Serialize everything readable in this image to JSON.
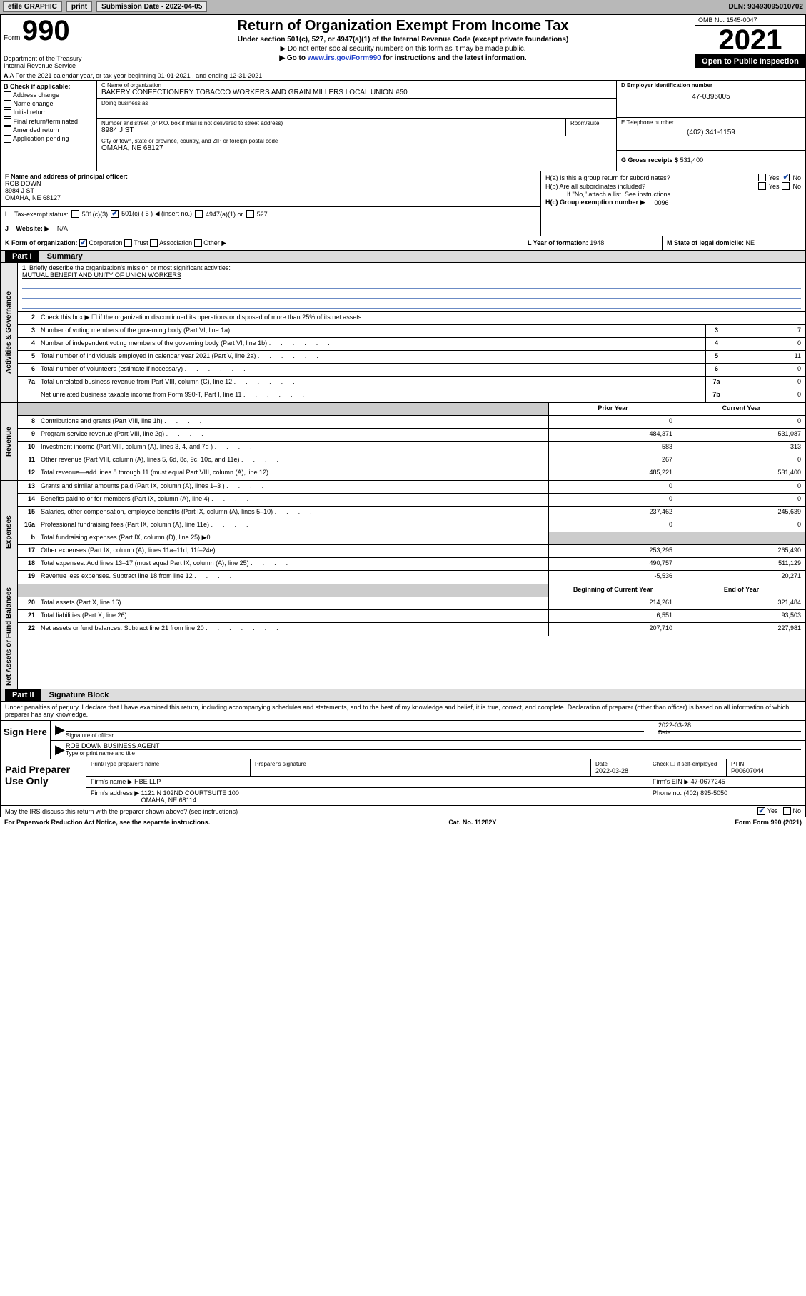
{
  "top_bar": {
    "efile": "efile GRAPHIC",
    "print": "print",
    "sub_label": "Submission Date - 2022-04-05",
    "dln": "DLN: 93493095010702"
  },
  "header": {
    "form_label": "Form",
    "form_num": "990",
    "dept": "Department of the Treasury\nInternal Revenue Service",
    "title": "Return of Organization Exempt From Income Tax",
    "sub": "Under section 501(c), 527, or 4947(a)(1) of the Internal Revenue Code (except private foundations)",
    "note1": "▶ Do not enter social security numbers on this form as it may be made public.",
    "note2_pre": "▶ Go to ",
    "note2_link": "www.irs.gov/Form990",
    "note2_post": " for instructions and the latest information.",
    "omb": "OMB No. 1545-0047",
    "year": "2021",
    "open": "Open to Public Inspection"
  },
  "row_a": "A For the 2021 calendar year, or tax year beginning 01-01-2021    , and ending 12-31-2021",
  "col_b": {
    "label": "B Check if applicable:",
    "items": [
      "Address change",
      "Name change",
      "Initial return",
      "Final return/terminated",
      "Amended return",
      "Application pending"
    ]
  },
  "col_c": {
    "name_label": "C Name of organization",
    "name": "BAKERY CONFECTIONERY TOBACCO WORKERS AND GRAIN MILLERS LOCAL UNION #50",
    "dba_label": "Doing business as",
    "addr_label": "Number and street (or P.O. box if mail is not delivered to street address)",
    "addr": "8984 J ST",
    "room_label": "Room/suite",
    "city_label": "City or town, state or province, country, and ZIP or foreign postal code",
    "city": "OMAHA, NE  68127"
  },
  "col_d": {
    "ein_label": "D Employer identification number",
    "ein": "47-0396005",
    "phone_label": "E Telephone number",
    "phone": "(402) 341-1159",
    "gross_label": "G Gross receipts $",
    "gross": "531,400"
  },
  "fgh": {
    "f_label": "F Name and address of principal officer:",
    "f_name": "ROB DOWN",
    "f_addr": "8984 J ST\nOMAHA, NE  68127",
    "i_label": "Tax-exempt status:",
    "i_501c3": "501(c)(3)",
    "i_501c": "501(c) ( 5 ) ◀ (insert no.)",
    "i_4947": "4947(a)(1) or",
    "i_527": "527",
    "j_label": "Website: ▶",
    "j_val": "N/A",
    "ha_label": "H(a)  Is this a group return for subordinates?",
    "hb_label": "H(b)  Are all subordinates included?",
    "hb_note": "If \"No,\" attach a list. See instructions.",
    "hc_label": "H(c)  Group exemption number ▶",
    "hc_val": "0096"
  },
  "row_k": {
    "k_label": "K Form of organization:",
    "k_corp": "Corporation",
    "k_trust": "Trust",
    "k_assoc": "Association",
    "k_other": "Other ▶",
    "l_label": "L Year of formation:",
    "l_val": "1948",
    "m_label": "M State of legal domicile:",
    "m_val": "NE"
  },
  "part1": {
    "header": "Part I",
    "title": "Summary",
    "q1_label": "Briefly describe the organization's mission or most significant activities:",
    "q1_val": "MUTUAL BENEFIT AND UNITY OF UNION WORKERS",
    "q2": "Check this box ▶ ☐  if the organization discontinued its operations or disposed of more than 25% of its net assets.",
    "rows_gov": [
      {
        "n": "3",
        "d": "Number of voting members of the governing body (Part VI, line 1a)",
        "box": "3",
        "v": "7"
      },
      {
        "n": "4",
        "d": "Number of independent voting members of the governing body (Part VI, line 1b)",
        "box": "4",
        "v": "0"
      },
      {
        "n": "5",
        "d": "Total number of individuals employed in calendar year 2021 (Part V, line 2a)",
        "box": "5",
        "v": "11"
      },
      {
        "n": "6",
        "d": "Total number of volunteers (estimate if necessary)",
        "box": "6",
        "v": "0"
      },
      {
        "n": "7a",
        "d": "Total unrelated business revenue from Part VIII, column (C), line 12",
        "box": "7a",
        "v": "0"
      },
      {
        "n": "",
        "d": "Net unrelated business taxable income from Form 990-T, Part I, line 11",
        "box": "7b",
        "v": "0"
      }
    ],
    "col_prior": "Prior Year",
    "col_current": "Current Year",
    "col_boy": "Beginning of Current Year",
    "col_eoy": "End of Year",
    "rows_rev": [
      {
        "n": "8",
        "d": "Contributions and grants (Part VIII, line 1h)",
        "p": "0",
        "c": "0"
      },
      {
        "n": "9",
        "d": "Program service revenue (Part VIII, line 2g)",
        "p": "484,371",
        "c": "531,087"
      },
      {
        "n": "10",
        "d": "Investment income (Part VIII, column (A), lines 3, 4, and 7d )",
        "p": "583",
        "c": "313"
      },
      {
        "n": "11",
        "d": "Other revenue (Part VIII, column (A), lines 5, 6d, 8c, 9c, 10c, and 11e)",
        "p": "267",
        "c": "0"
      },
      {
        "n": "12",
        "d": "Total revenue—add lines 8 through 11 (must equal Part VIII, column (A), line 12)",
        "p": "485,221",
        "c": "531,400"
      }
    ],
    "rows_exp": [
      {
        "n": "13",
        "d": "Grants and similar amounts paid (Part IX, column (A), lines 1–3 )",
        "p": "0",
        "c": "0"
      },
      {
        "n": "14",
        "d": "Benefits paid to or for members (Part IX, column (A), line 4)",
        "p": "0",
        "c": "0"
      },
      {
        "n": "15",
        "d": "Salaries, other compensation, employee benefits (Part IX, column (A), lines 5–10)",
        "p": "237,462",
        "c": "245,639"
      },
      {
        "n": "16a",
        "d": "Professional fundraising fees (Part IX, column (A), line 11e)",
        "p": "0",
        "c": "0"
      },
      {
        "n": "b",
        "d": "Total fundraising expenses (Part IX, column (D), line 25) ▶0",
        "p": "",
        "c": "",
        "shaded": true
      },
      {
        "n": "17",
        "d": "Other expenses (Part IX, column (A), lines 11a–11d, 11f–24e)",
        "p": "253,295",
        "c": "265,490"
      },
      {
        "n": "18",
        "d": "Total expenses. Add lines 13–17 (must equal Part IX, column (A), line 25)",
        "p": "490,757",
        "c": "511,129"
      },
      {
        "n": "19",
        "d": "Revenue less expenses. Subtract line 18 from line 12",
        "p": "-5,536",
        "c": "20,271"
      }
    ],
    "rows_net": [
      {
        "n": "20",
        "d": "Total assets (Part X, line 16)",
        "p": "214,261",
        "c": "321,484"
      },
      {
        "n": "21",
        "d": "Total liabilities (Part X, line 26)",
        "p": "6,551",
        "c": "93,503"
      },
      {
        "n": "22",
        "d": "Net assets or fund balances. Subtract line 21 from line 20",
        "p": "207,710",
        "c": "227,981"
      }
    ],
    "side_gov": "Activities & Governance",
    "side_rev": "Revenue",
    "side_exp": "Expenses",
    "side_net": "Net Assets or Fund Balances"
  },
  "part2": {
    "header": "Part II",
    "title": "Signature Block",
    "perjury": "Under penalties of perjury, I declare that I have examined this return, including accompanying schedules and statements, and to the best of my knowledge and belief, it is true, correct, and complete. Declaration of preparer (other than officer) is based on all information of which preparer has any knowledge.",
    "sign_here": "Sign Here",
    "sig_officer": "Signature of officer",
    "sig_date": "2022-03-28",
    "sig_name": "ROB DOWN  BUSINESS AGENT",
    "sig_name_label": "Type or print name and title",
    "date_label": "Date",
    "paid": "Paid Preparer Use Only",
    "prep_name_label": "Print/Type preparer's name",
    "prep_sig_label": "Preparer's signature",
    "prep_date": "2022-03-28",
    "prep_check": "Check ☐ if self-employed",
    "ptin_label": "PTIN",
    "ptin": "P00607044",
    "firm_name_label": "Firm's name    ▶",
    "firm_name": "HBE LLP",
    "firm_ein_label": "Firm's EIN ▶",
    "firm_ein": "47-0677245",
    "firm_addr_label": "Firm's address ▶",
    "firm_addr": "1121 N 102ND COURTSUITE 100\nOMAHA, NE  68114",
    "firm_phone_label": "Phone no.",
    "firm_phone": "(402) 895-5050",
    "discuss": "May the IRS discuss this return with the preparer shown above? (see instructions)",
    "yes": "Yes",
    "no": "No"
  },
  "footer": {
    "paperwork": "For Paperwork Reduction Act Notice, see the separate instructions.",
    "cat": "Cat. No. 11282Y",
    "form": "Form 990 (2021)"
  }
}
